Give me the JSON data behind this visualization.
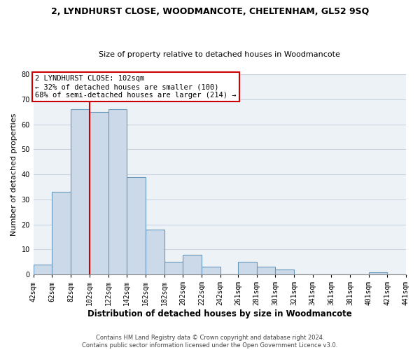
{
  "title": "2, LYNDHURST CLOSE, WOODMANCOTE, CHELTENHAM, GL52 9SQ",
  "subtitle": "Size of property relative to detached houses in Woodmancote",
  "xlabel": "Distribution of detached houses by size in Woodmancote",
  "ylabel": "Number of detached properties",
  "bar_lefts": [
    42,
    62,
    82,
    102,
    122,
    142,
    162,
    182,
    202,
    222,
    242,
    261,
    281,
    301,
    321,
    341,
    361,
    381,
    401,
    421
  ],
  "bar_widths": [
    20,
    20,
    20,
    20,
    20,
    20,
    20,
    20,
    20,
    20,
    19,
    20,
    20,
    20,
    20,
    20,
    20,
    20,
    20,
    20
  ],
  "bar_heights": [
    4,
    33,
    66,
    65,
    66,
    39,
    18,
    5,
    8,
    3,
    0,
    5,
    3,
    2,
    0,
    0,
    0,
    0,
    1,
    0
  ],
  "bar_color": "#ccd9e8",
  "bar_edge_color": "#6699bb",
  "vline_x": 102,
  "vline_color": "#cc0000",
  "ylim": [
    0,
    80
  ],
  "yticks": [
    0,
    10,
    20,
    30,
    40,
    50,
    60,
    70,
    80
  ],
  "xtick_positions": [
    42,
    62,
    82,
    102,
    122,
    142,
    162,
    182,
    202,
    222,
    242,
    261,
    281,
    301,
    321,
    341,
    361,
    381,
    401,
    421,
    441
  ],
  "xtick_labels": [
    "42sqm",
    "62sqm",
    "82sqm",
    "102sqm",
    "122sqm",
    "142sqm",
    "162sqm",
    "182sqm",
    "202sqm",
    "222sqm",
    "242sqm",
    "261sqm",
    "281sqm",
    "301sqm",
    "321sqm",
    "341sqm",
    "361sqm",
    "381sqm",
    "401sqm",
    "421sqm",
    "441sqm"
  ],
  "xlim": [
    42,
    441
  ],
  "annotation_title": "2 LYNDHURST CLOSE: 102sqm",
  "annotation_line1": "← 32% of detached houses are smaller (100)",
  "annotation_line2": "68% of semi-detached houses are larger (214) →",
  "annotation_box_color": "#ffffff",
  "annotation_box_edge_color": "#cc0000",
  "footer_line1": "Contains HM Land Registry data © Crown copyright and database right 2024.",
  "footer_line2": "Contains public sector information licensed under the Open Government Licence v3.0.",
  "grid_color": "#c8d4e0",
  "background_color": "#edf2f7",
  "title_fontsize": 9,
  "subtitle_fontsize": 8,
  "ylabel_fontsize": 8,
  "xlabel_fontsize": 8.5,
  "tick_fontsize": 7,
  "annotation_fontsize": 7.5,
  "footer_fontsize": 6
}
